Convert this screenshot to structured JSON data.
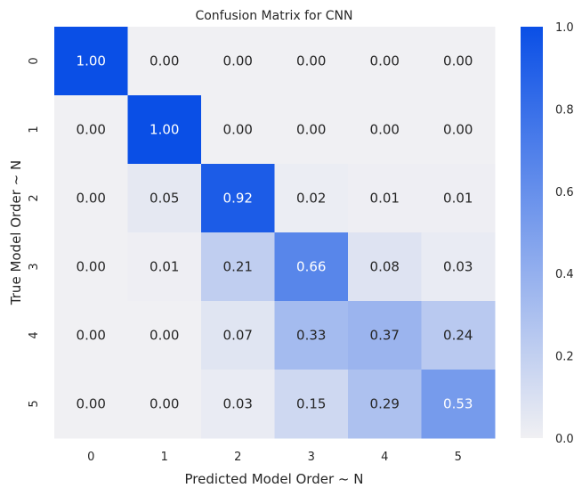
{
  "chart_data": {
    "type": "heatmap",
    "title": "Confusion Matrix for CNN",
    "xlabel": "Predicted Model Order ~ N",
    "ylabel": "True Model Order ~ N",
    "x_categories": [
      "0",
      "1",
      "2",
      "3",
      "4",
      "5"
    ],
    "y_categories": [
      "0",
      "1",
      "2",
      "3",
      "4",
      "5"
    ],
    "values": [
      [
        1.0,
        0.0,
        0.0,
        0.0,
        0.0,
        0.0
      ],
      [
        0.0,
        1.0,
        0.0,
        0.0,
        0.0,
        0.0
      ],
      [
        0.0,
        0.05,
        0.92,
        0.02,
        0.01,
        0.01
      ],
      [
        0.0,
        0.01,
        0.21,
        0.66,
        0.08,
        0.03
      ],
      [
        0.0,
        0.0,
        0.07,
        0.33,
        0.37,
        0.24
      ],
      [
        0.0,
        0.0,
        0.03,
        0.15,
        0.29,
        0.53
      ]
    ],
    "colorbar": {
      "min": 0.0,
      "max": 1.0,
      "ticks": [
        "0.0",
        "0.2",
        "0.4",
        "0.6",
        "0.8",
        "1.0"
      ]
    },
    "colors": {
      "low": "#f0f0f3",
      "high": "#0a4fe6"
    }
  }
}
